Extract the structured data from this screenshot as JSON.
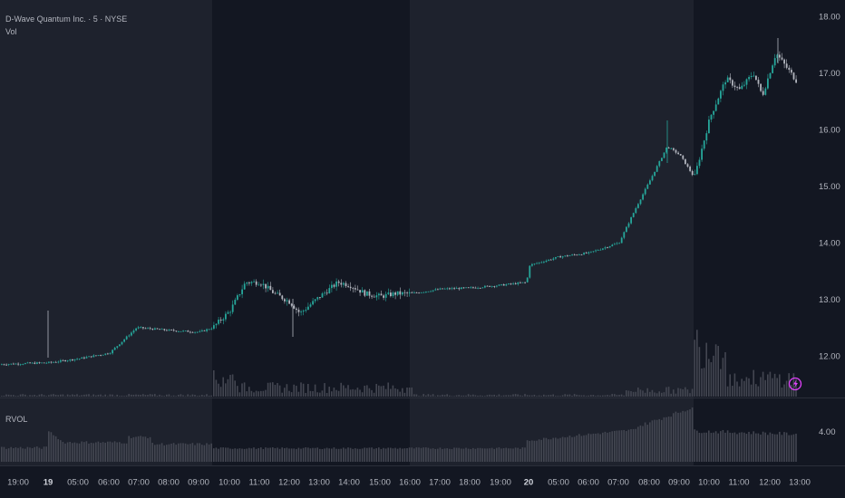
{
  "header": {
    "symbol_title": "D-Wave Quantum Inc. · 5 · NYSE",
    "volume_label": "Vol"
  },
  "rvol_pane": {
    "label": "RVOL",
    "tick": "4.00"
  },
  "colors": {
    "background": "#131722",
    "session_shade": "#1e222d",
    "up_candle": "#26a69a",
    "down_candle": "#b2b5be",
    "volume_bar": "#434651",
    "rvol_bar": "#434651",
    "lightning_badge": "#e040fb"
  },
  "chart_data": {
    "type": "candlestick",
    "price_axis": {
      "ticks": [
        "18.00",
        "17.00",
        "16.00",
        "15.00",
        "14.00",
        "13.00",
        "12.00"
      ],
      "range": [
        11.3,
        18.2
      ]
    },
    "time_axis": {
      "labels": [
        "19:00",
        "19",
        "05:00",
        "06:00",
        "07:00",
        "08:00",
        "09:00",
        "10:00",
        "11:00",
        "12:00",
        "13:00",
        "14:00",
        "15:00",
        "16:00",
        "17:00",
        "18:00",
        "19:00",
        "20",
        "05:00",
        "06:00",
        "07:00",
        "08:00",
        "09:00",
        "10:00",
        "11:00",
        "12:00",
        "13:00"
      ],
      "bold_labels": [
        "19",
        "20"
      ]
    },
    "sessions": [
      {
        "type": "extended",
        "from": "19:00",
        "to": "09:30"
      },
      {
        "type": "regular",
        "from": "09:30",
        "to": "16:00"
      },
      {
        "type": "extended",
        "from": "16:00",
        "to": "09:30"
      },
      {
        "type": "regular",
        "from": "09:30",
        "to": "13:00"
      }
    ],
    "close_path": [
      [
        "19:00",
        11.85
      ],
      [
        "19",
        11.88
      ],
      [
        "05:00",
        11.95
      ],
      [
        "06:00",
        12.05
      ],
      [
        "07:00",
        12.5
      ],
      [
        "08:00",
        12.45
      ],
      [
        "09:00",
        12.42
      ],
      [
        "09:30",
        12.5
      ],
      [
        "10:00",
        12.8
      ],
      [
        "10:30",
        13.3
      ],
      [
        "11:00",
        13.3
      ],
      [
        "11:30",
        13.1
      ],
      [
        "12:00",
        12.95
      ],
      [
        "12:30",
        12.75
      ],
      [
        "13:00",
        13.05
      ],
      [
        "13:30",
        13.3
      ],
      [
        "14:00",
        13.25
      ],
      [
        "14:30",
        13.1
      ],
      [
        "15:00",
        13.05
      ],
      [
        "15:30",
        13.1
      ],
      [
        "16:00",
        13.1
      ],
      [
        "17:00",
        13.18
      ],
      [
        "18:00",
        13.2
      ],
      [
        "19:00",
        13.25
      ],
      [
        "20",
        13.3
      ],
      [
        "20",
        13.6
      ],
      [
        "05:00",
        13.75
      ],
      [
        "06:00",
        13.82
      ],
      [
        "07:00",
        14.0
      ],
      [
        "07:30",
        14.6
      ],
      [
        "08:00",
        15.1
      ],
      [
        "08:30",
        15.7
      ],
      [
        "09:00",
        15.55
      ],
      [
        "09:30",
        15.15
      ],
      [
        "10:00",
        16.2
      ],
      [
        "10:30",
        16.9
      ],
      [
        "11:00",
        16.7
      ],
      [
        "11:30",
        17.0
      ],
      [
        "12:00",
        16.6
      ],
      [
        "12:30",
        17.35
      ],
      [
        "13:00",
        16.85
      ]
    ]
  }
}
